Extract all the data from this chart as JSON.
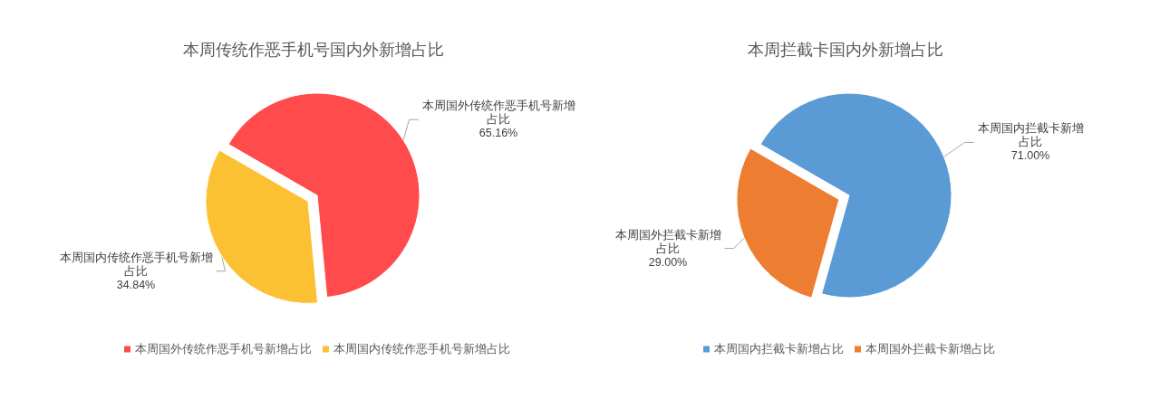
{
  "chart_data": [
    {
      "type": "pie",
      "title": "本周传统作恶手机号国内外新增占比",
      "categories": [
        "本周国外传统作恶手机号新增占比",
        "本周国内传统作恶手机号新增占比"
      ],
      "values": [
        65.16,
        34.84
      ],
      "colors": [
        "#ff4b4b",
        "#fbc132"
      ],
      "value_labels": [
        "65.16%",
        "34.84%"
      ],
      "legend": "bottom"
    },
    {
      "type": "pie",
      "title": "本周拦截卡国内外新增占比",
      "categories": [
        "本周国内拦截卡新增占比",
        "本周国外拦截卡新增占比"
      ],
      "values": [
        71.0,
        29.0
      ],
      "colors": [
        "#5b9bd5",
        "#ed7d31"
      ],
      "value_labels": [
        "71.00%",
        "29.00%"
      ],
      "legend": "bottom"
    }
  ]
}
